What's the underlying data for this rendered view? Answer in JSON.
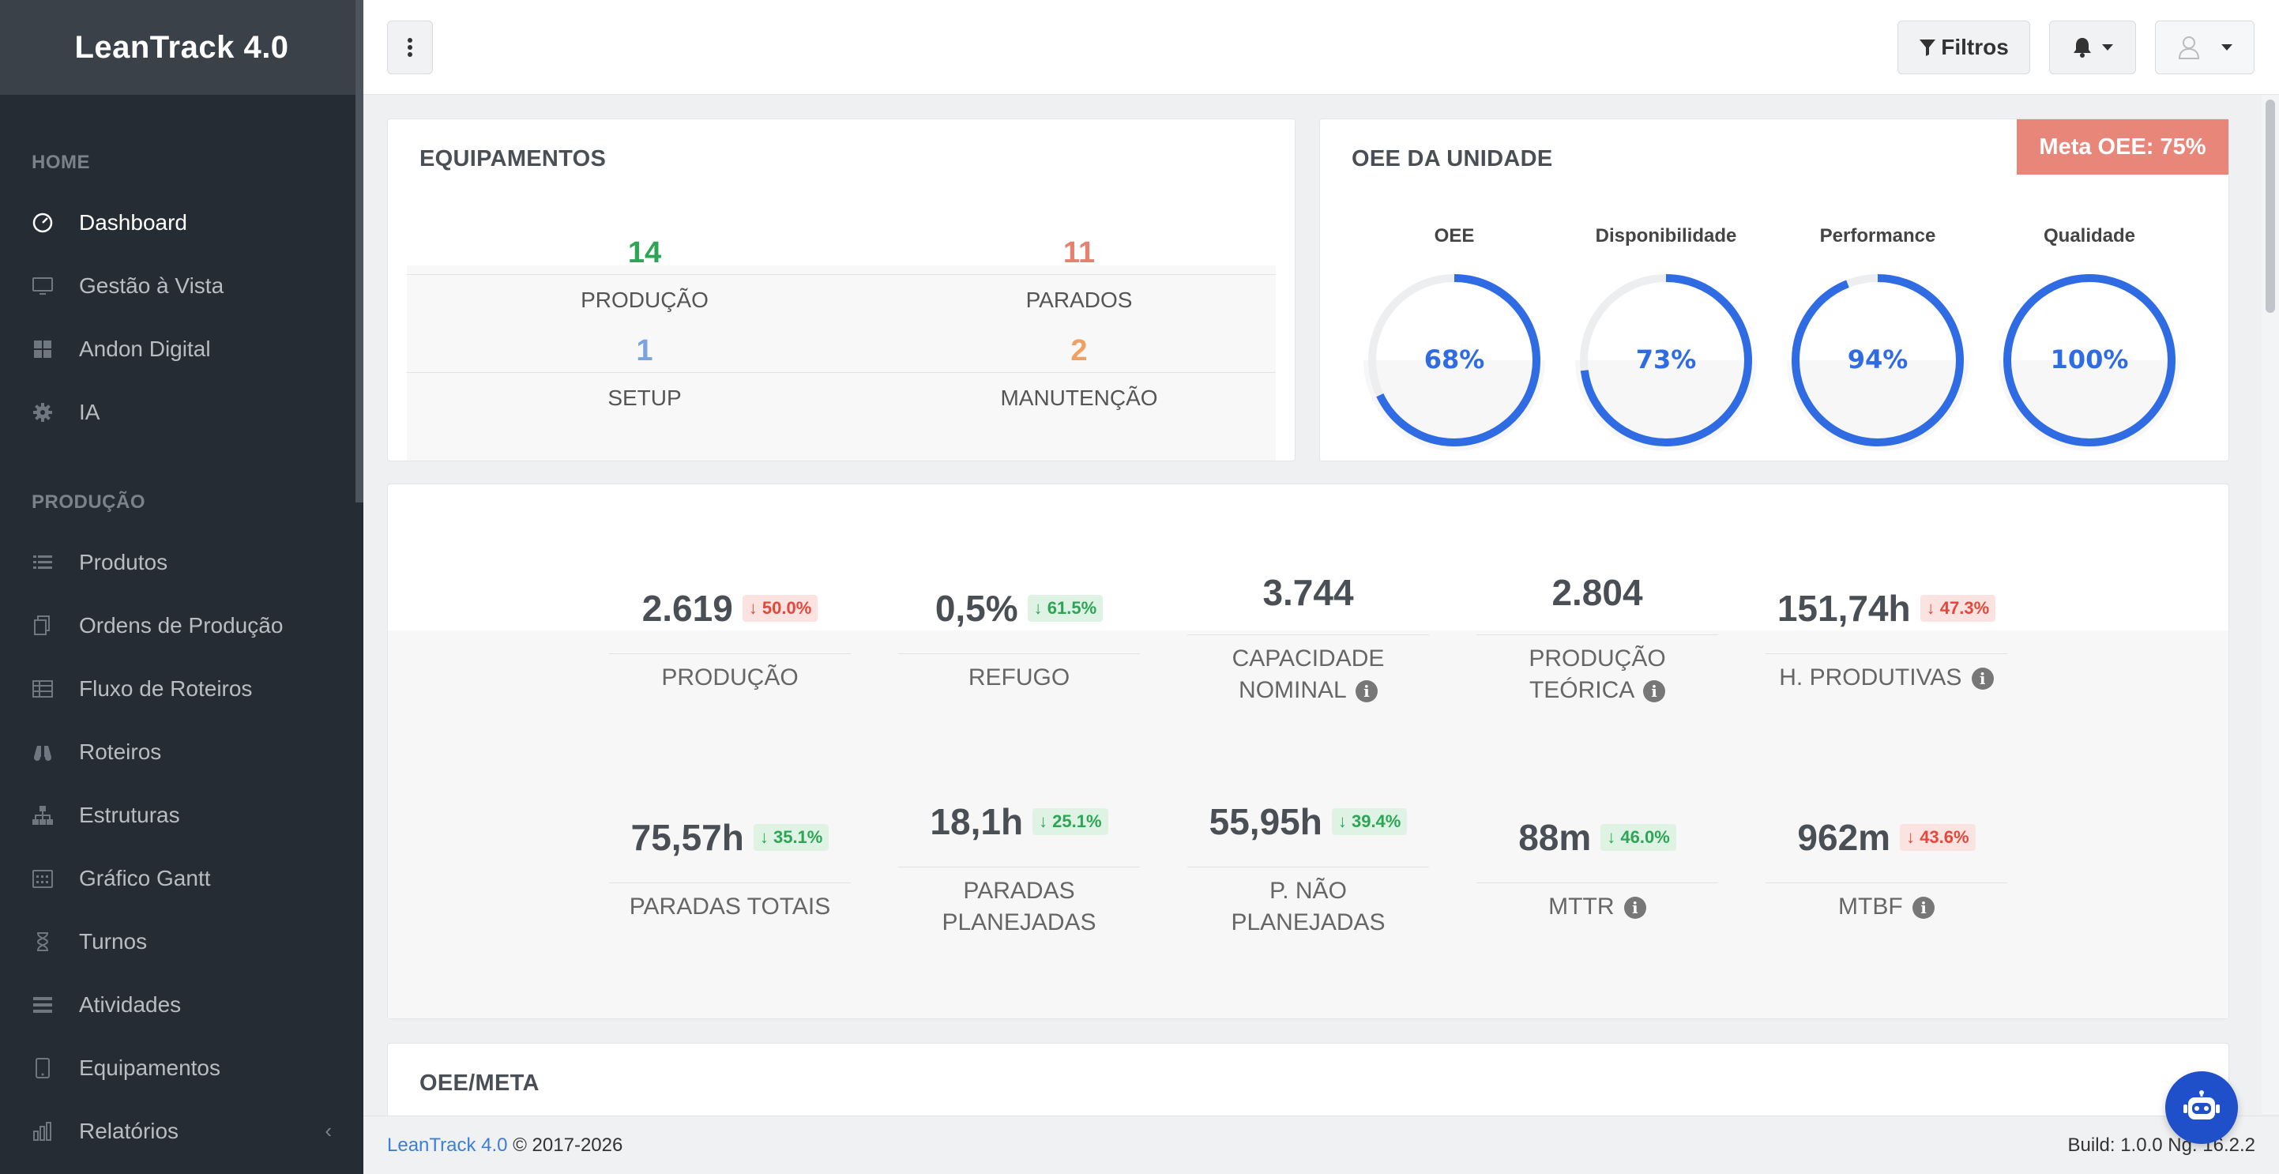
{
  "brand": "LeanTrack 4.0",
  "sidebar": {
    "sections": [
      {
        "title": "HOME",
        "items": [
          {
            "label": "Dashboard",
            "icon": "gauge-icon",
            "active": true
          },
          {
            "label": "Gestão à Vista",
            "icon": "monitor-icon"
          },
          {
            "label": "Andon Digital",
            "icon": "grid-icon"
          },
          {
            "label": "IA",
            "icon": "gear-icon"
          }
        ]
      },
      {
        "title": "PRODUÇÃO",
        "items": [
          {
            "label": "Produtos",
            "icon": "list-icon"
          },
          {
            "label": "Ordens de Produção",
            "icon": "copy-icon"
          },
          {
            "label": "Fluxo de Roteiros",
            "icon": "table-icon"
          },
          {
            "label": "Roteiros",
            "icon": "binoculars-icon"
          },
          {
            "label": "Estruturas",
            "icon": "sitemap-icon"
          },
          {
            "label": "Gráfico Gantt",
            "icon": "calendar-icon"
          },
          {
            "label": "Turnos",
            "icon": "hourglass-icon"
          },
          {
            "label": "Atividades",
            "icon": "tasks-icon"
          },
          {
            "label": "Equipamentos",
            "icon": "tablet-icon"
          },
          {
            "label": "Relatórios",
            "icon": "bar-chart-icon",
            "chevron": "‹"
          }
        ]
      }
    ]
  },
  "header": {
    "filter_label": "Filtros"
  },
  "equipamentos": {
    "title": "EQUIPAMENTOS",
    "stats": [
      {
        "value": "14",
        "label": "PRODUÇÃO",
        "color": "#2ea556"
      },
      {
        "value": "11",
        "label": "PARADOS",
        "color": "#e8806f"
      },
      {
        "value": "1",
        "label": "SETUP",
        "color": "#7aa3e0"
      },
      {
        "value": "2",
        "label": "MANUTENÇÃO",
        "color": "#f0a061"
      }
    ]
  },
  "oee": {
    "title": "OEE DA UNIDADE",
    "meta_badge": "Meta OEE: 75%",
    "gauges": [
      {
        "label": "OEE",
        "text": "68%",
        "value": 68
      },
      {
        "label": "Disponibilidade",
        "text": "73%",
        "value": 73
      },
      {
        "label": "Performance",
        "text": "94%",
        "value": 94
      },
      {
        "label": "Qualidade",
        "text": "100%",
        "value": 100
      }
    ],
    "accent": "#2f6be3"
  },
  "kpis": [
    {
      "value": "2.619",
      "badge": "↓ 50.0%",
      "badge_type": "red",
      "label": [
        "PRODUÇÃO"
      ],
      "info": false
    },
    {
      "value": "0,5%",
      "badge": "↓ 61.5%",
      "badge_type": "green",
      "label": [
        "REFUGO"
      ],
      "info": false
    },
    {
      "value": "3.744",
      "badge": "",
      "badge_type": "",
      "label": [
        "CAPACIDADE",
        "NOMINAL"
      ],
      "info": true
    },
    {
      "value": "2.804",
      "badge": "",
      "badge_type": "",
      "label": [
        "PRODUÇÃO",
        "TEÓRICA"
      ],
      "info": true
    },
    {
      "value": "151,74h",
      "badge": "↓ 47.3%",
      "badge_type": "red",
      "label": [
        "H. PRODUTIVAS"
      ],
      "info": true
    },
    {
      "value": "75,57h",
      "badge": "↓ 35.1%",
      "badge_type": "green",
      "label": [
        "PARADAS TOTAIS"
      ],
      "info": false
    },
    {
      "value": "18,1h",
      "badge": "↓ 25.1%",
      "badge_type": "green",
      "label": [
        "PARADAS",
        "PLANEJADAS"
      ],
      "info": false
    },
    {
      "value": "55,95h",
      "badge": "↓ 39.4%",
      "badge_type": "green",
      "label": [
        "P. NÃO",
        "PLANEJADAS"
      ],
      "info": false
    },
    {
      "value": "88m",
      "badge": "↓ 46.0%",
      "badge_type": "green",
      "label": [
        "MTTR"
      ],
      "info": true
    },
    {
      "value": "962m",
      "badge": "↓ 43.6%",
      "badge_type": "red",
      "label": [
        "MTBF"
      ],
      "info": true
    }
  ],
  "oee_meta": {
    "title": "OEE/META"
  },
  "footer": {
    "brand_link": "LeanTrack 4.0",
    "copyright": "© 2017-2026",
    "build": "Build: 1.0.0 Ng: 16.2.2"
  }
}
